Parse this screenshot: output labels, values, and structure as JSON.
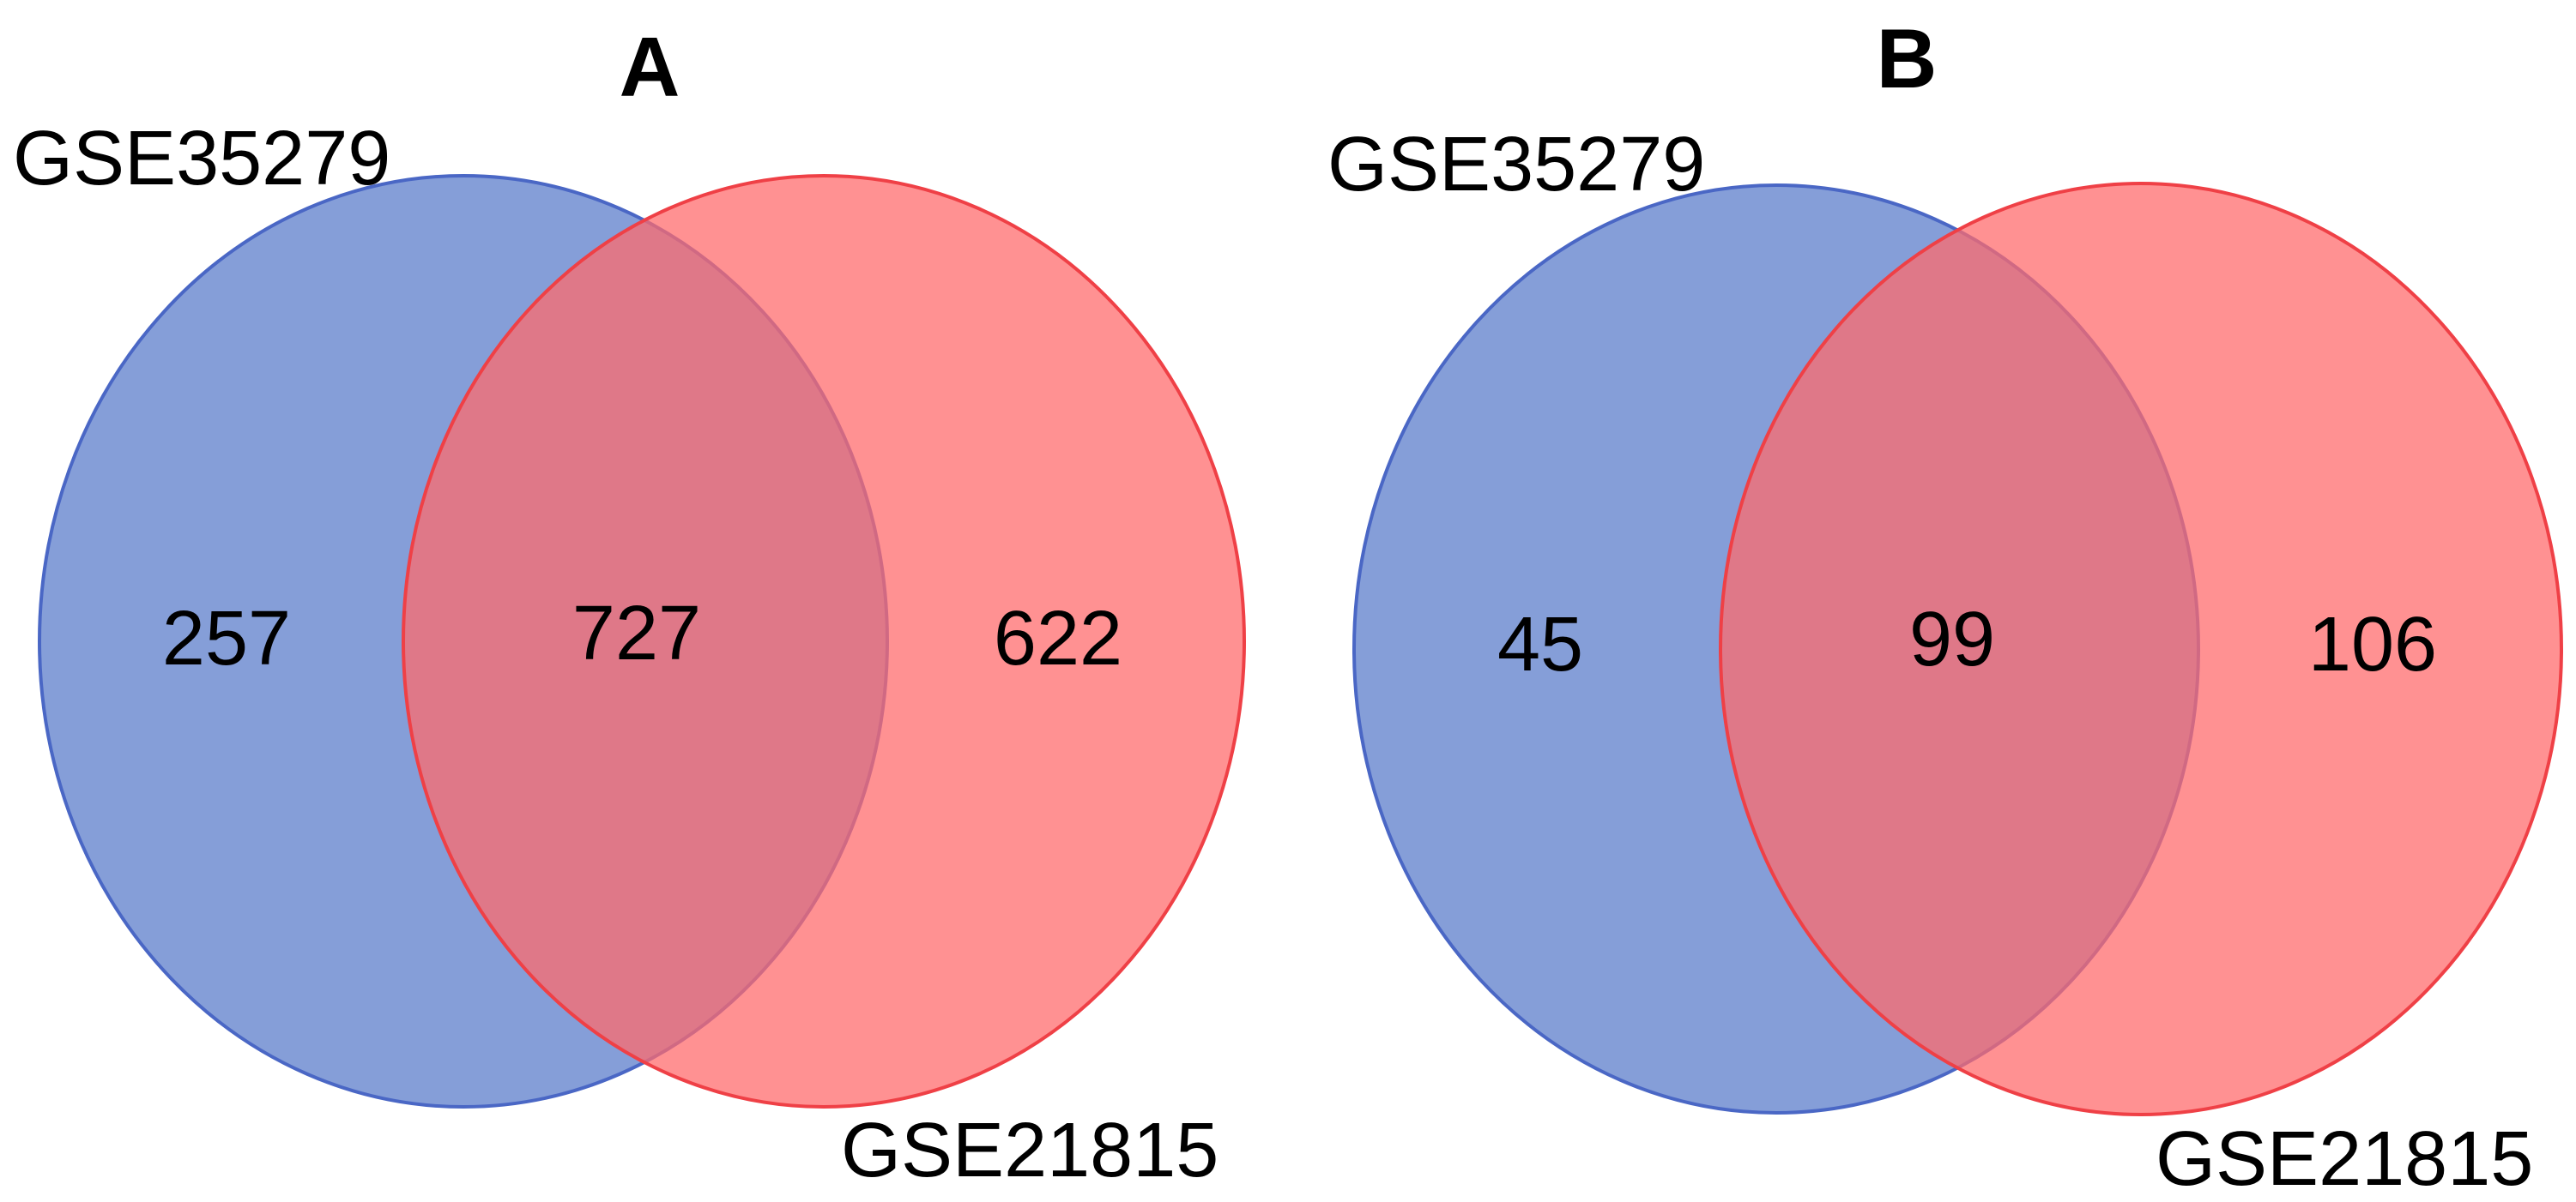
{
  "colors": {
    "set_a_fill": "#5b7cca",
    "set_a_stroke": "#4a67c5",
    "set_b_fill": "#ff6a6c",
    "set_b_stroke": "#ef4046",
    "background": "#ffffff",
    "text": "#000000"
  },
  "panels": [
    {
      "letter": "A",
      "set_a_label": "GSE35279",
      "set_b_label": "GSE21815",
      "only_a": "257",
      "both": "727",
      "only_b": "622"
    },
    {
      "letter": "B",
      "set_a_label": "GSE35279",
      "set_b_label": "GSE21815",
      "only_a": "45",
      "both": "99",
      "only_b": "106"
    }
  ]
}
